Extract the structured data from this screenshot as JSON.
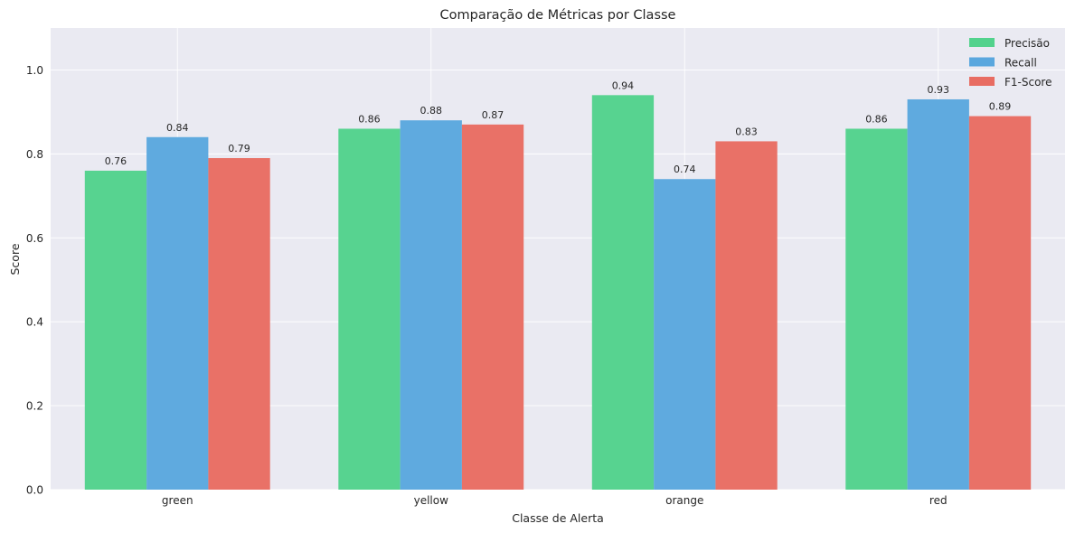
{
  "chart_data": {
    "type": "bar",
    "title": "Comparação de Métricas por Classe",
    "xlabel": "Classe de Alerta",
    "ylabel": "Score",
    "categories": [
      "green",
      "yellow",
      "orange",
      "red"
    ],
    "ylim": [
      0,
      1.1
    ],
    "yticks": [
      "0.0",
      "0.2",
      "0.4",
      "0.6",
      "0.8",
      "1.0"
    ],
    "grid": true,
    "legend_position": "top-right",
    "series": [
      {
        "name": "Precisão",
        "color": "#52d28c",
        "values": [
          0.76,
          0.86,
          0.94,
          0.86
        ]
      },
      {
        "name": "Recall",
        "color": "#5aa7de",
        "values": [
          0.84,
          0.88,
          0.74,
          0.93
        ]
      },
      {
        "name": "F1-Score",
        "color": "#e86c62",
        "values": [
          0.79,
          0.87,
          0.83,
          0.89
        ]
      }
    ]
  }
}
